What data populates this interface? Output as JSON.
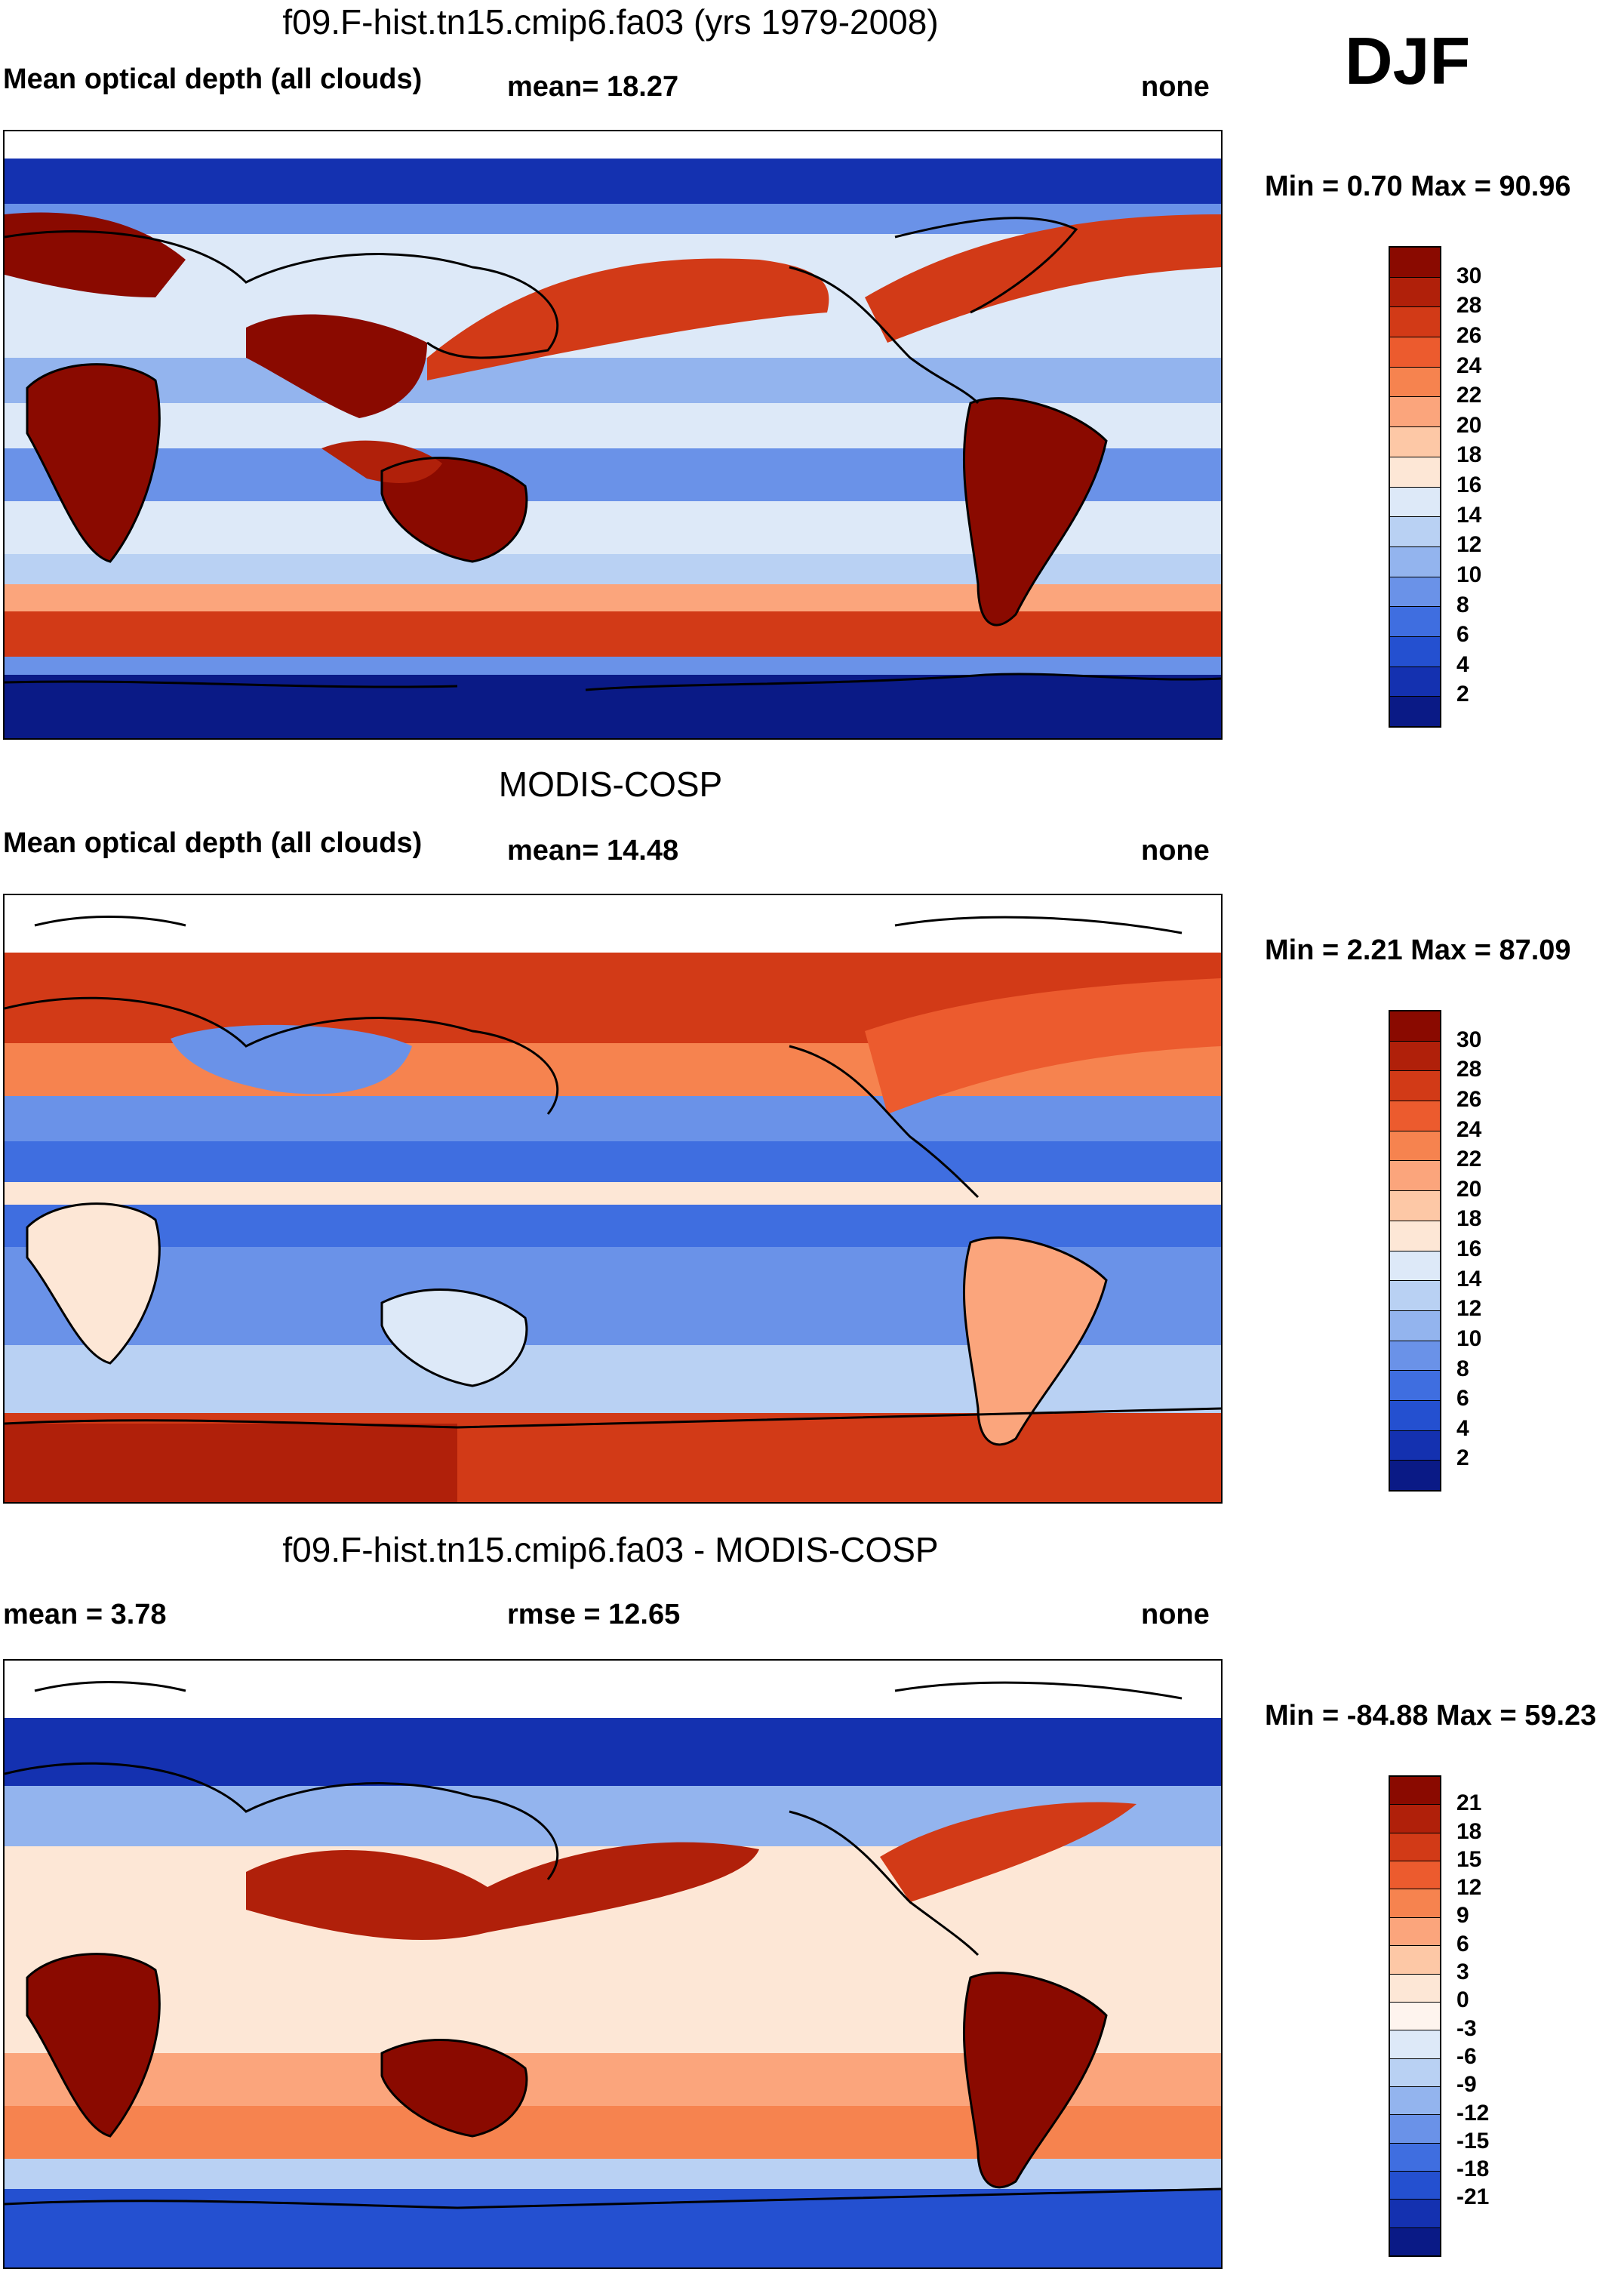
{
  "season": "DJF",
  "panels": [
    {
      "id": "model",
      "title": "f09.F-hist.tn15.cmip6.fa03 (yrs 1979-2008)",
      "left_label": "Mean optical depth (all clouds)",
      "center_label": "mean=  18.27",
      "right_label": "none",
      "minmax": "Min =   0.70 Max =  90.96",
      "colorbar": {
        "colors": [
          "#8a0a00",
          "#b0200a",
          "#d23a17",
          "#ec5b2e",
          "#f6834f",
          "#fba57c",
          "#fdc8a6",
          "#fde7d6",
          "#dde9f8",
          "#b9d1f3",
          "#93b4ee",
          "#6a92e8",
          "#3f6ee0",
          "#2450d0",
          "#1431b0",
          "#0a1a86"
        ],
        "ticks": [
          "30",
          "28",
          "26",
          "24",
          "22",
          "20",
          "18",
          "16",
          "14",
          "12",
          "10",
          "8",
          "6",
          "4",
          "2"
        ]
      }
    },
    {
      "id": "obs",
      "title": "MODIS-COSP",
      "left_label": "Mean optical depth (all clouds)",
      "center_label": "mean=  14.48",
      "right_label": "none",
      "minmax": "Min =   2.21 Max =  87.09",
      "colorbar": {
        "colors": [
          "#8a0a00",
          "#b0200a",
          "#d23a17",
          "#ec5b2e",
          "#f6834f",
          "#fba57c",
          "#fdc8a6",
          "#fde7d6",
          "#dde9f8",
          "#b9d1f3",
          "#93b4ee",
          "#6a92e8",
          "#3f6ee0",
          "#2450d0",
          "#1431b0",
          "#0a1a86"
        ],
        "ticks": [
          "30",
          "28",
          "26",
          "24",
          "22",
          "20",
          "18",
          "16",
          "14",
          "12",
          "10",
          "8",
          "6",
          "4",
          "2"
        ]
      }
    },
    {
      "id": "diff",
      "title": "f09.F-hist.tn15.cmip6.fa03 - MODIS-COSP",
      "left_label": "mean =   3.78",
      "center_label": "rmse =  12.65",
      "right_label": "none",
      "minmax": "Min = -84.88 Max =  59.23",
      "colorbar": {
        "colors": [
          "#8a0a00",
          "#b0200a",
          "#d23a17",
          "#ec5b2e",
          "#f6834f",
          "#fba57c",
          "#fdc8a6",
          "#fde7d6",
          "#fef4ee",
          "#dde9f8",
          "#b9d1f3",
          "#93b4ee",
          "#6a92e8",
          "#3f6ee0",
          "#2450d0",
          "#1431b0",
          "#0a1a86"
        ],
        "ticks": [
          "21",
          "18",
          "15",
          "12",
          "9",
          "6",
          "3",
          "0",
          "-3",
          "-6",
          "-9",
          "-12",
          "-15",
          "-18",
          "-21"
        ]
      }
    }
  ]
}
